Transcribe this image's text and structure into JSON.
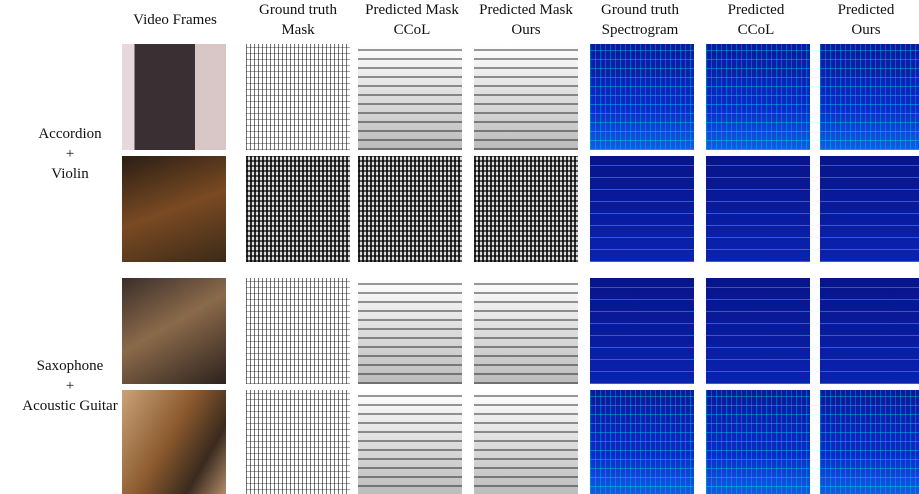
{
  "columns": [
    {
      "lines": [
        "Video Frames"
      ]
    },
    {
      "lines": [
        "Ground truth",
        "Mask"
      ]
    },
    {
      "lines": [
        "Predicted Mask",
        "CCoL"
      ]
    },
    {
      "lines": [
        "Predicted Mask",
        "Ours"
      ]
    },
    {
      "lines": [
        "Ground truth",
        "Spectrogram"
      ]
    },
    {
      "lines": [
        "Predicted",
        "CCoL"
      ]
    },
    {
      "lines": [
        "Predicted",
        "Ours"
      ]
    }
  ],
  "groups": [
    {
      "lines": [
        "Accordion",
        "+",
        "Violin"
      ]
    },
    {
      "lines": [
        "Saxophone",
        "+",
        "Acoustic Guitar"
      ]
    }
  ]
}
